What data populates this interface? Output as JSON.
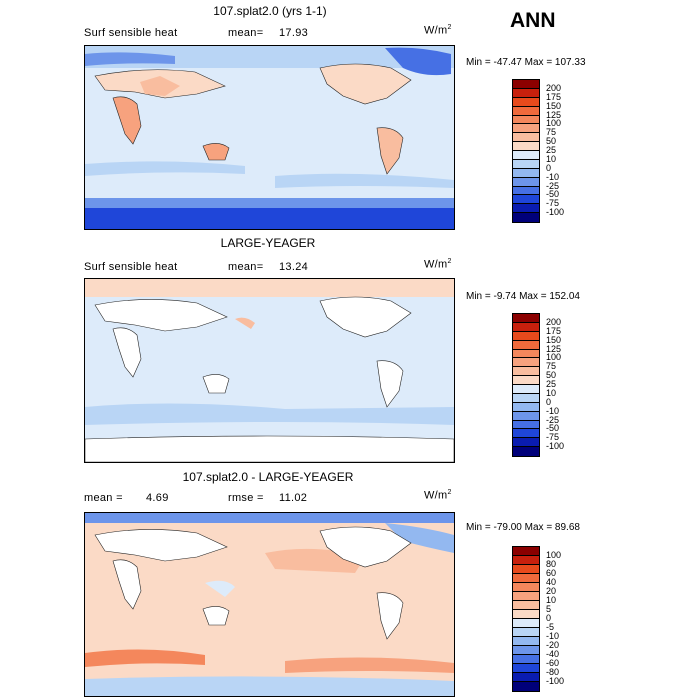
{
  "season": "ANN",
  "panels": [
    {
      "title": "107.splat2.0 (yrs 1-1)",
      "left_label": "Surf sensible heat",
      "stat_label": "mean=",
      "stat_value": "17.93",
      "units": "W/m",
      "units_exp": "2",
      "min_max": "Min = -47.47  Max = 107.33",
      "levels": [
        "200",
        "175",
        "150",
        "125",
        "100",
        "75",
        "50",
        "25",
        "10",
        "0",
        "-10",
        "-25",
        "-50",
        "-75",
        "-100"
      ],
      "colors": [
        "#8b0000",
        "#c8200d",
        "#e84a1c",
        "#f06a3c",
        "#f4875c",
        "#f7a27e",
        "#f9bd9f",
        "#fbdac6",
        "#ddebfa",
        "#b9d5f5",
        "#93b8f0",
        "#6d95ea",
        "#4670e4",
        "#1f46d9",
        "#0a1cb0",
        "#00007a"
      ]
    },
    {
      "title": "LARGE-YEAGER",
      "left_label": "Surf sensible heat",
      "stat_label": "mean=",
      "stat_value": "13.24",
      "units": "W/m",
      "units_exp": "2",
      "min_max": "Min =  -9.74  Max = 152.04",
      "levels": [
        "200",
        "175",
        "150",
        "125",
        "100",
        "75",
        "50",
        "25",
        "10",
        "0",
        "-10",
        "-25",
        "-50",
        "-75",
        "-100"
      ],
      "colors": [
        "#8b0000",
        "#c8200d",
        "#e84a1c",
        "#f06a3c",
        "#f4875c",
        "#f7a27e",
        "#f9bd9f",
        "#fbdac6",
        "#ddebfa",
        "#b9d5f5",
        "#93b8f0",
        "#6d95ea",
        "#4670e4",
        "#1f46d9",
        "#0a1cb0",
        "#00007a"
      ]
    },
    {
      "title": "107.splat2.0 - LARGE-YEAGER",
      "left_label": "mean =",
      "left_value": "4.69",
      "stat_label": "rmse =",
      "stat_value": "11.02",
      "units": "W/m",
      "units_exp": "2",
      "min_max": "Min = -79.00  Max =  89.68",
      "levels": [
        "100",
        "80",
        "60",
        "40",
        "20",
        "10",
        "5",
        "0",
        "-5",
        "-10",
        "-20",
        "-40",
        "-60",
        "-80",
        "-100"
      ],
      "colors": [
        "#8b0000",
        "#c8200d",
        "#e84a1c",
        "#f06a3c",
        "#f4875c",
        "#f7a27e",
        "#f9bd9f",
        "#fbdac6",
        "#ddebfa",
        "#b9d5f5",
        "#93b8f0",
        "#6d95ea",
        "#4670e4",
        "#1f46d9",
        "#0a1cb0",
        "#00007a"
      ]
    }
  ]
}
